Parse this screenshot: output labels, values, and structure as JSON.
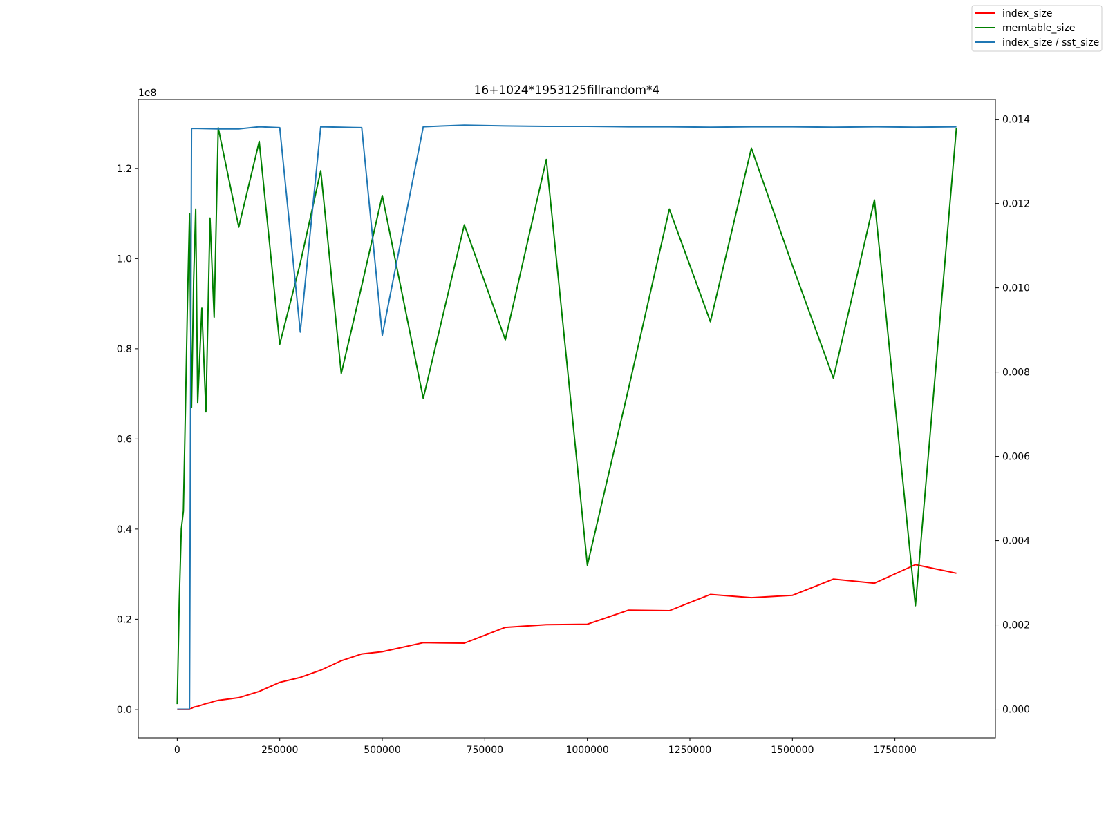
{
  "chart_data": {
    "type": "line",
    "title": "16+1024*1953125fillrandom*4",
    "xlabel": "",
    "ylabel": "",
    "y_left_offset_text": "1e8",
    "xlim": [
      -95000,
      1995000
    ],
    "ylim_left": [
      -6300000,
      135300000
    ],
    "ylim_right": [
      -0.00068,
      0.01447
    ],
    "x_ticks": [
      0,
      250000,
      500000,
      750000,
      1000000,
      1250000,
      1500000,
      1750000
    ],
    "x_tick_labels": [
      "0",
      "250000",
      "500000",
      "750000",
      "1000000",
      "1250000",
      "1500000",
      "1750000"
    ],
    "y_left_ticks": [
      0,
      20000000,
      40000000,
      60000000,
      80000000,
      100000000,
      120000000
    ],
    "y_left_tick_labels": [
      "0.0",
      "0.2",
      "0.4",
      "0.6",
      "0.8",
      "1.0",
      "1.2"
    ],
    "y_right_ticks": [
      0,
      0.002,
      0.004,
      0.006,
      0.008,
      0.01,
      0.012,
      0.014
    ],
    "y_right_tick_labels": [
      "0.000",
      "0.002",
      "0.004",
      "0.006",
      "0.008",
      "0.010",
      "0.012",
      "0.014"
    ],
    "grid": false,
    "legend_position": "top-right (outside plot)",
    "series": [
      {
        "name": "index_size",
        "color": "#ff0000",
        "axis": "left",
        "x": [
          0,
          10000,
          20000,
          30000,
          40000,
          50000,
          60000,
          70000,
          80000,
          90000,
          100000,
          150000,
          200000,
          250000,
          300000,
          350000,
          400000,
          450000,
          500000,
          600000,
          700000,
          800000,
          900000,
          1000000,
          1100000,
          1200000,
          1300000,
          1400000,
          1500000,
          1600000,
          1700000,
          1800000,
          1900000
        ],
        "y": [
          0,
          0,
          0,
          0,
          500000,
          700000,
          1000000,
          1300000,
          1500000,
          1800000,
          2000000,
          2600000,
          4000000,
          6000000,
          7100000,
          8700000,
          10800000,
          12300000,
          12800000,
          14800000,
          14700000,
          18200000,
          18800000,
          18900000,
          22000000,
          21900000,
          25500000,
          24800000,
          25300000,
          28900000,
          28000000,
          32100000,
          30200000
        ]
      },
      {
        "name": "memtable_size",
        "color": "#008000",
        "axis": "left",
        "x": [
          0,
          5000,
          10000,
          15000,
          20000,
          25000,
          30000,
          35000,
          40000,
          45000,
          50000,
          60000,
          70000,
          80000,
          90000,
          100000,
          150000,
          200000,
          250000,
          300000,
          350000,
          400000,
          450000,
          500000,
          600000,
          700000,
          800000,
          900000,
          1000000,
          1100000,
          1200000,
          1300000,
          1400000,
          1500000,
          1600000,
          1700000,
          1800000,
          1900000
        ],
        "y": [
          1200000,
          24000000,
          40000000,
          44000000,
          66000000,
          90000000,
          110000000,
          67000000,
          95000000,
          111000000,
          68000000,
          89000000,
          66000000,
          109000000,
          87000000,
          129000000,
          107000000,
          126000000,
          81000000,
          99000000,
          119500000,
          74500000,
          94000000,
          114000000,
          69000000,
          107500000,
          82000000,
          122000000,
          32000000,
          71000000,
          111000000,
          86000000,
          124500000,
          98500000,
          73500000,
          113000000,
          23000000,
          129000000
        ]
      },
      {
        "name": "index_size / sst_size",
        "color": "#1f77b4",
        "axis": "right",
        "x": [
          0,
          10000,
          20000,
          30000,
          35000,
          50000,
          100000,
          150000,
          200000,
          250000,
          300000,
          350000,
          400000,
          450000,
          500000,
          600000,
          700000,
          800000,
          900000,
          1000000,
          1100000,
          1200000,
          1300000,
          1400000,
          1500000,
          1600000,
          1700000,
          1800000,
          1900000
        ],
        "y": [
          0,
          0,
          0,
          0,
          0.01378,
          0.01378,
          0.01377,
          0.01377,
          0.01382,
          0.0138,
          0.00895,
          0.01382,
          0.01381,
          0.0138,
          0.00887,
          0.01382,
          0.01386,
          0.01384,
          0.01383,
          0.01383,
          0.01382,
          0.01382,
          0.01381,
          0.01382,
          0.01382,
          0.01381,
          0.01382,
          0.01381,
          0.01382
        ]
      }
    ]
  }
}
